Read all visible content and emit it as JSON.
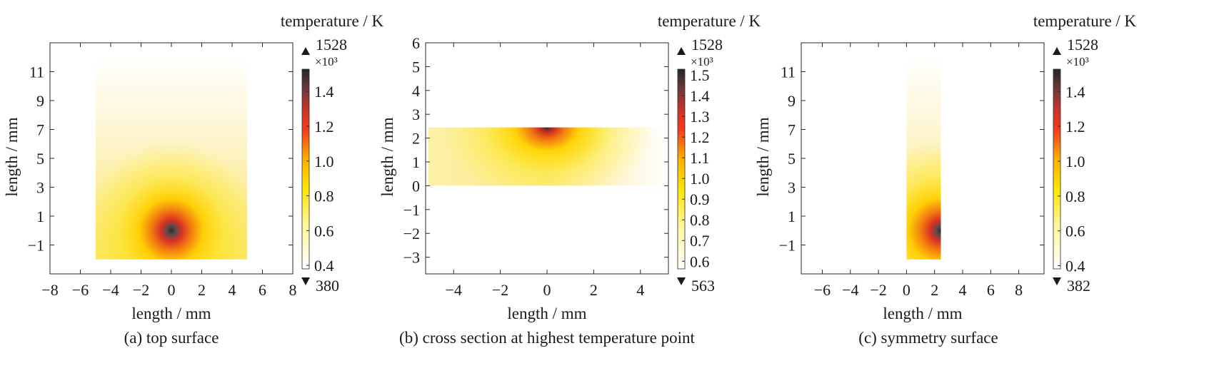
{
  "chart_data": [
    {
      "type": "heatmap",
      "caption": "(a) top surface",
      "xlabel": "length / mm",
      "ylabel": "length / mm",
      "xlim": [
        -8,
        8
      ],
      "ylim": [
        -3,
        13
      ],
      "xticks": [
        "−8",
        "−6",
        "−4",
        "−2",
        "0",
        "2",
        "4",
        "6",
        "8"
      ],
      "xtick_values": [
        -8,
        -6,
        -4,
        -2,
        0,
        2,
        4,
        6,
        8
      ],
      "yticks": [
        "−1",
        "1",
        "3",
        "5",
        "7",
        "9",
        "11"
      ],
      "ytick_values": [
        -1,
        1,
        3,
        5,
        7,
        9,
        11
      ],
      "domain": {
        "xmin": -5,
        "xmax": 5,
        "ymin": -2,
        "ymax": 12
      },
      "hot_spot": {
        "x": 0,
        "y": 0
      },
      "colorbar": {
        "title": "temperature / K",
        "max_label": "1528",
        "scale_label": "×10³",
        "min_label": "380",
        "vmin": 0.38,
        "vmax": 1.528,
        "ticks": [
          "1.4",
          "1.2",
          "1.0",
          "0.8",
          "0.6",
          "0.4"
        ],
        "tick_values": [
          1.4,
          1.2,
          1.0,
          0.8,
          0.6,
          0.4
        ]
      }
    },
    {
      "type": "heatmap",
      "caption": "(b) cross section at highest temperature point",
      "xlabel": "length / mm",
      "ylabel": "length / mm",
      "xlim": [
        -5.2,
        5.2
      ],
      "ylim": [
        -3.7,
        6
      ],
      "xticks": [
        "−4",
        "−2",
        "0",
        "2",
        "4"
      ],
      "xtick_values": [
        -4,
        -2,
        0,
        2,
        4
      ],
      "yticks": [
        "6",
        "5",
        "4",
        "3",
        "2",
        "1",
        "0",
        "−1",
        "−2",
        "−3"
      ],
      "ytick_values": [
        6,
        5,
        4,
        3,
        2,
        1,
        0,
        -1,
        -2,
        -3
      ],
      "domain": {
        "xmin": -5.1,
        "xmax": 5.2,
        "ymin": 0,
        "ymax": 2.45
      },
      "hot_spot": {
        "x": 0,
        "y": 2.45
      },
      "colorbar": {
        "title": "temperature / K",
        "max_label": "1528",
        "scale_label": "×10³",
        "min_label": "563",
        "vmin": 0.563,
        "vmax": 1.528,
        "ticks": [
          "1.5",
          "1.4",
          "1.3",
          "1.2",
          "1.1",
          "1.0",
          "0.9",
          "0.8",
          "0.7",
          "0.6"
        ],
        "tick_values": [
          1.5,
          1.4,
          1.3,
          1.2,
          1.1,
          1.0,
          0.9,
          0.8,
          0.7,
          0.6
        ]
      }
    },
    {
      "type": "heatmap",
      "caption": "(c) symmetry surface",
      "xlabel": "length / mm",
      "ylabel": "length / mm",
      "xlim": [
        -7.5,
        9.8
      ],
      "ylim": [
        -3,
        13
      ],
      "xticks": [
        "−6",
        "−4",
        "−2",
        "0",
        "2",
        "4",
        "6",
        "8"
      ],
      "xtick_values": [
        -6,
        -4,
        -2,
        0,
        2,
        4,
        6,
        8
      ],
      "yticks": [
        "−1",
        "1",
        "3",
        "5",
        "7",
        "9",
        "11"
      ],
      "ytick_values": [
        -1,
        1,
        3,
        5,
        7,
        9,
        11
      ],
      "domain": {
        "xmin": 0,
        "xmax": 2.45,
        "ymin": -2,
        "ymax": 12
      },
      "hot_spot": {
        "x": 2.45,
        "y": 0
      },
      "colorbar": {
        "title": "temperature / K",
        "max_label": "1528",
        "scale_label": "×10³",
        "min_label": "382",
        "vmin": 0.382,
        "vmax": 1.528,
        "ticks": [
          "1.4",
          "1.2",
          "1.0",
          "0.8",
          "0.6",
          "0.4"
        ],
        "tick_values": [
          1.4,
          1.2,
          1.0,
          0.8,
          0.6,
          0.4
        ]
      }
    }
  ]
}
